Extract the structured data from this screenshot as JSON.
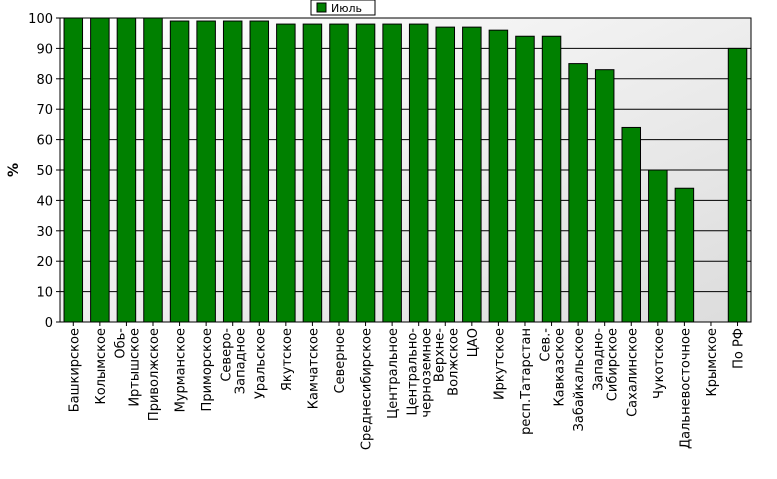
{
  "chart_data": {
    "type": "bar",
    "title": "",
    "xlabel": "",
    "ylabel": "%",
    "ylim": [
      0,
      100
    ],
    "yticks": [
      0,
      10,
      20,
      30,
      40,
      50,
      60,
      70,
      80,
      90,
      100
    ],
    "grid": true,
    "legend_position": "top-center",
    "series": [
      {
        "name": "Июль",
        "color": "#008000",
        "values": [
          100,
          100,
          100,
          100,
          99,
          99,
          99,
          99,
          98,
          98,
          98,
          98,
          98,
          98,
          97,
          97,
          96,
          94,
          94,
          85,
          83,
          64,
          50,
          44,
          0,
          90
        ]
      }
    ],
    "categories": [
      "Башкирское",
      "Колымское",
      "Обь-Иртышское",
      "Приволжское",
      "Мурманское",
      "Приморское",
      "Северо-Западное",
      "Уральское",
      "Якутское",
      "Камчатское",
      "Северное",
      "Среднесибирское",
      "Центральное",
      "Центрально-черноземное",
      "Верхне-Волжское",
      "ЦАО",
      "Иркутское",
      "респ.Татарстан",
      "Сев.-Кавказское",
      "Забайкальское",
      "Западно-Сибирское",
      "Сахалинское",
      "Чукотское",
      "Дальневосточное",
      "Крымское",
      "По РФ"
    ]
  }
}
